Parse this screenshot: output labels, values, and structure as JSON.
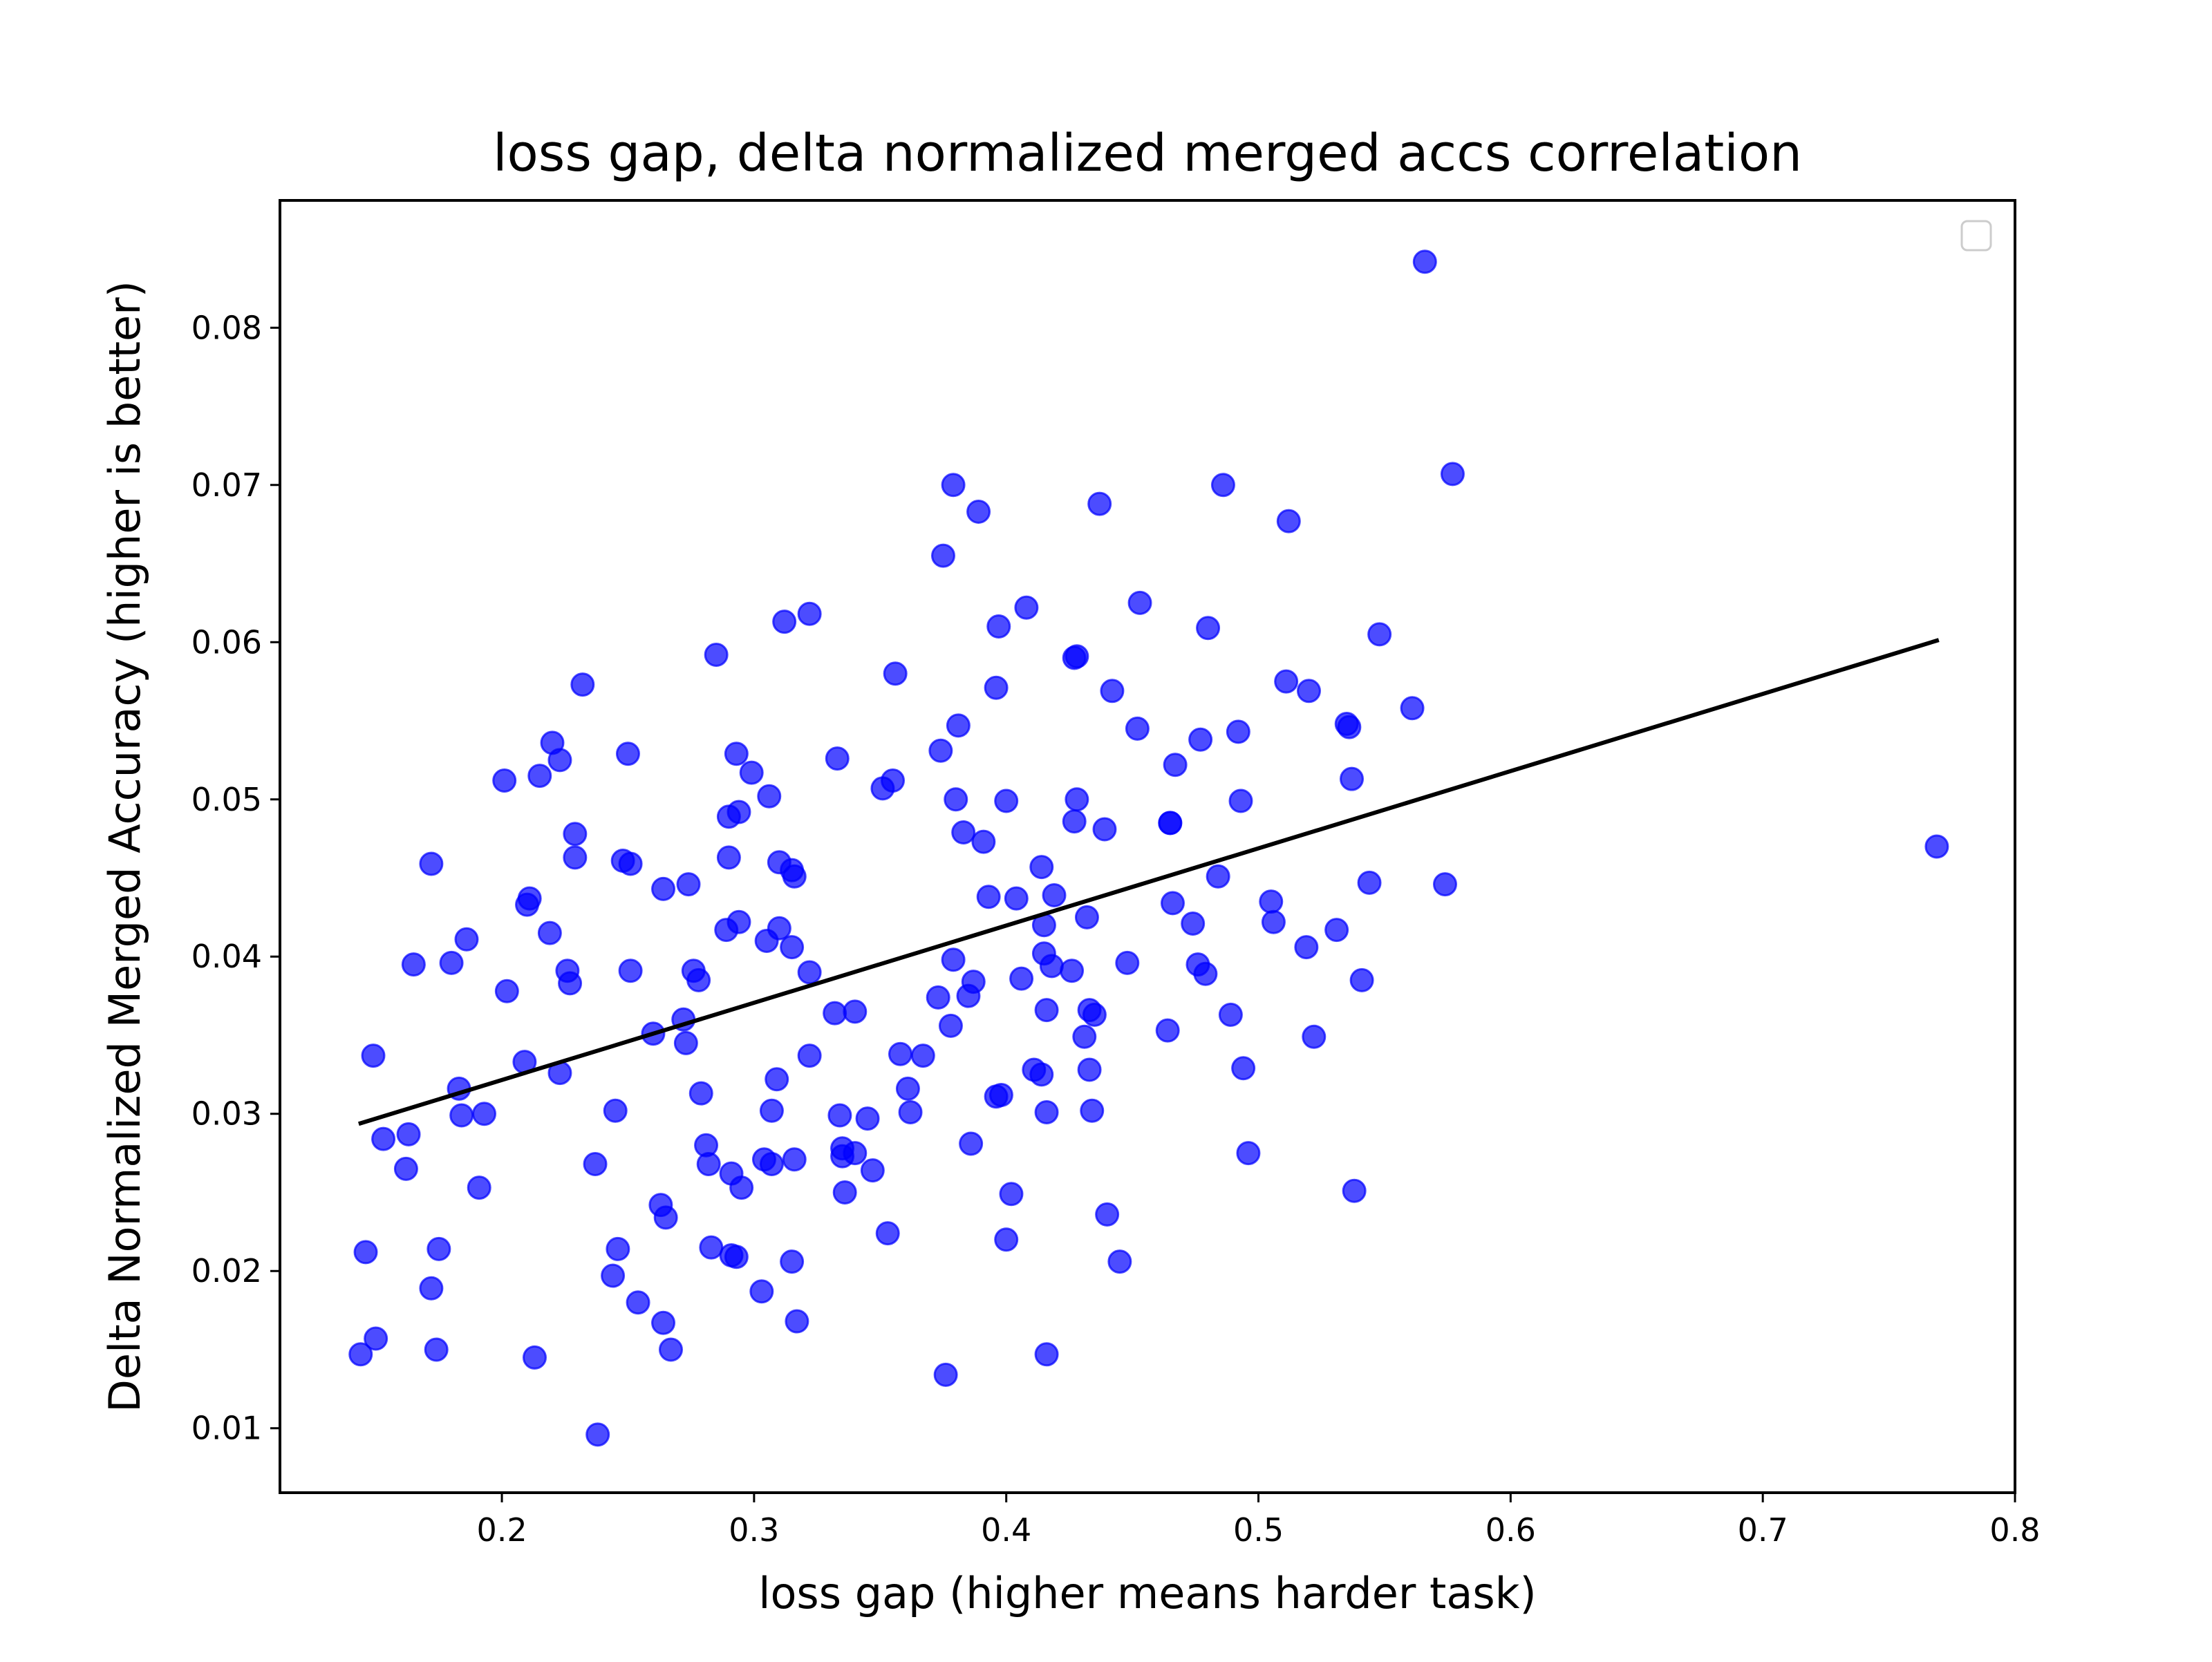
{
  "chart_data": {
    "type": "scatter",
    "title": "loss gap, delta normalized merged accs correlation",
    "xlabel": "loss gap (higher means harder task)",
    "ylabel": "Delta Normalized Merged Accuracy (higher is better)",
    "xlim": [
      0.112,
      0.8
    ],
    "ylim": [
      0.0059,
      0.0881
    ],
    "x_ticks": [
      0.2,
      0.3,
      0.4,
      0.5,
      0.6,
      0.7,
      0.8
    ],
    "x_tick_labels": [
      "0.2",
      "0.3",
      "0.4",
      "0.5",
      "0.6",
      "0.7",
      "0.8"
    ],
    "y_ticks": [
      0.01,
      0.02,
      0.03,
      0.04,
      0.05,
      0.06,
      0.07,
      0.08
    ],
    "y_tick_labels": [
      "0.01",
      "0.02",
      "0.03",
      "0.04",
      "0.05",
      "0.06",
      "0.07",
      "0.08"
    ],
    "grid": false,
    "legend": {
      "placement": "upper right",
      "entries": []
    },
    "colors": {
      "points": "#0000ff",
      "point_alpha": 0.7,
      "trend_line": "#000000"
    },
    "trend_line": {
      "x": [
        0.144,
        0.769
      ],
      "y": [
        0.0294,
        0.0601
      ]
    },
    "points": [
      [
        0.144,
        0.0147
      ],
      [
        0.146,
        0.0212
      ],
      [
        0.149,
        0.0337
      ],
      [
        0.15,
        0.0157
      ],
      [
        0.153,
        0.0284
      ],
      [
        0.162,
        0.0265
      ],
      [
        0.163,
        0.0287
      ],
      [
        0.165,
        0.0395
      ],
      [
        0.172,
        0.0459
      ],
      [
        0.172,
        0.0189
      ],
      [
        0.174,
        0.015
      ],
      [
        0.175,
        0.0214
      ],
      [
        0.18,
        0.0396
      ],
      [
        0.183,
        0.0316
      ],
      [
        0.184,
        0.0299
      ],
      [
        0.186,
        0.0411
      ],
      [
        0.191,
        0.0253
      ],
      [
        0.193,
        0.03
      ],
      [
        0.201,
        0.0512
      ],
      [
        0.202,
        0.0378
      ],
      [
        0.209,
        0.0333
      ],
      [
        0.21,
        0.0433
      ],
      [
        0.211,
        0.0437
      ],
      [
        0.213,
        0.0145
      ],
      [
        0.215,
        0.0515
      ],
      [
        0.219,
        0.0415
      ],
      [
        0.22,
        0.0536
      ],
      [
        0.223,
        0.0525
      ],
      [
        0.223,
        0.0326
      ],
      [
        0.226,
        0.0391
      ],
      [
        0.227,
        0.0383
      ],
      [
        0.229,
        0.0478
      ],
      [
        0.229,
        0.0463
      ],
      [
        0.232,
        0.0573
      ],
      [
        0.237,
        0.0268
      ],
      [
        0.238,
        0.0096
      ],
      [
        0.244,
        0.0197
      ],
      [
        0.245,
        0.0302
      ],
      [
        0.246,
        0.0214
      ],
      [
        0.248,
        0.0461
      ],
      [
        0.25,
        0.0529
      ],
      [
        0.251,
        0.0391
      ],
      [
        0.251,
        0.0459
      ],
      [
        0.254,
        0.018
      ],
      [
        0.26,
        0.0351
      ],
      [
        0.263,
        0.0242
      ],
      [
        0.264,
        0.0443
      ],
      [
        0.264,
        0.0167
      ],
      [
        0.265,
        0.0234
      ],
      [
        0.267,
        0.015
      ],
      [
        0.272,
        0.036
      ],
      [
        0.273,
        0.0345
      ],
      [
        0.274,
        0.0446
      ],
      [
        0.276,
        0.0391
      ],
      [
        0.278,
        0.0385
      ],
      [
        0.279,
        0.0313
      ],
      [
        0.281,
        0.028
      ],
      [
        0.282,
        0.0268
      ],
      [
        0.283,
        0.0215
      ],
      [
        0.285,
        0.0592
      ],
      [
        0.289,
        0.0417
      ],
      [
        0.29,
        0.0463
      ],
      [
        0.29,
        0.0489
      ],
      [
        0.291,
        0.0262
      ],
      [
        0.291,
        0.021
      ],
      [
        0.293,
        0.0529
      ],
      [
        0.293,
        0.0209
      ],
      [
        0.294,
        0.0492
      ],
      [
        0.294,
        0.0422
      ],
      [
        0.295,
        0.0253
      ],
      [
        0.299,
        0.0517
      ],
      [
        0.303,
        0.0187
      ],
      [
        0.304,
        0.0271
      ],
      [
        0.305,
        0.041
      ],
      [
        0.306,
        0.0502
      ],
      [
        0.307,
        0.0268
      ],
      [
        0.307,
        0.0302
      ],
      [
        0.309,
        0.0322
      ],
      [
        0.31,
        0.0418
      ],
      [
        0.31,
        0.046
      ],
      [
        0.312,
        0.0613
      ],
      [
        0.315,
        0.0455
      ],
      [
        0.315,
        0.0406
      ],
      [
        0.315,
        0.0206
      ],
      [
        0.316,
        0.0271
      ],
      [
        0.316,
        0.0451
      ],
      [
        0.317,
        0.0168
      ],
      [
        0.322,
        0.0618
      ],
      [
        0.322,
        0.039
      ],
      [
        0.322,
        0.0337
      ],
      [
        0.332,
        0.0364
      ],
      [
        0.333,
        0.0526
      ],
      [
        0.334,
        0.0299
      ],
      [
        0.335,
        0.0273
      ],
      [
        0.335,
        0.0278
      ],
      [
        0.336,
        0.025
      ],
      [
        0.34,
        0.0365
      ],
      [
        0.34,
        0.0275
      ],
      [
        0.345,
        0.0297
      ],
      [
        0.347,
        0.0264
      ],
      [
        0.351,
        0.0507
      ],
      [
        0.353,
        0.0224
      ],
      [
        0.355,
        0.0512
      ],
      [
        0.356,
        0.058
      ],
      [
        0.358,
        0.0338
      ],
      [
        0.361,
        0.0316
      ],
      [
        0.362,
        0.0301
      ],
      [
        0.367,
        0.0337
      ],
      [
        0.373,
        0.0374
      ],
      [
        0.374,
        0.0531
      ],
      [
        0.375,
        0.0655
      ],
      [
        0.376,
        0.0134
      ],
      [
        0.378,
        0.0356
      ],
      [
        0.379,
        0.07
      ],
      [
        0.379,
        0.0398
      ],
      [
        0.38,
        0.05
      ],
      [
        0.381,
        0.0547
      ],
      [
        0.383,
        0.0479
      ],
      [
        0.385,
        0.0375
      ],
      [
        0.386,
        0.0281
      ],
      [
        0.387,
        0.0384
      ],
      [
        0.389,
        0.0683
      ],
      [
        0.391,
        0.0473
      ],
      [
        0.393,
        0.0438
      ],
      [
        0.396,
        0.0311
      ],
      [
        0.396,
        0.0571
      ],
      [
        0.397,
        0.061
      ],
      [
        0.398,
        0.0312
      ],
      [
        0.4,
        0.0499
      ],
      [
        0.4,
        0.022
      ],
      [
        0.402,
        0.0249
      ],
      [
        0.404,
        0.0437
      ],
      [
        0.406,
        0.0386
      ],
      [
        0.408,
        0.0622
      ],
      [
        0.411,
        0.0328
      ],
      [
        0.414,
        0.0457
      ],
      [
        0.414,
        0.0325
      ],
      [
        0.415,
        0.0402
      ],
      [
        0.415,
        0.042
      ],
      [
        0.416,
        0.0366
      ],
      [
        0.416,
        0.0301
      ],
      [
        0.416,
        0.0147
      ],
      [
        0.418,
        0.0394
      ],
      [
        0.419,
        0.0439
      ],
      [
        0.426,
        0.0391
      ],
      [
        0.427,
        0.0486
      ],
      [
        0.427,
        0.059
      ],
      [
        0.428,
        0.0591
      ],
      [
        0.428,
        0.05
      ],
      [
        0.431,
        0.0349
      ],
      [
        0.432,
        0.0425
      ],
      [
        0.433,
        0.0328
      ],
      [
        0.433,
        0.0366
      ],
      [
        0.434,
        0.0302
      ],
      [
        0.435,
        0.0363
      ],
      [
        0.437,
        0.0688
      ],
      [
        0.439,
        0.0481
      ],
      [
        0.44,
        0.0236
      ],
      [
        0.442,
        0.0569
      ],
      [
        0.445,
        0.0206
      ],
      [
        0.448,
        0.0396
      ],
      [
        0.452,
        0.0545
      ],
      [
        0.453,
        0.0625
      ],
      [
        0.464,
        0.0353
      ],
      [
        0.465,
        0.0485
      ],
      [
        0.465,
        0.0485
      ],
      [
        0.466,
        0.0434
      ],
      [
        0.467,
        0.0522
      ],
      [
        0.474,
        0.0421
      ],
      [
        0.476,
        0.0395
      ],
      [
        0.477,
        0.0538
      ],
      [
        0.479,
        0.0389
      ],
      [
        0.48,
        0.0609
      ],
      [
        0.484,
        0.0451
      ],
      [
        0.486,
        0.07
      ],
      [
        0.489,
        0.0363
      ],
      [
        0.492,
        0.0543
      ],
      [
        0.493,
        0.0499
      ],
      [
        0.494,
        0.0329
      ],
      [
        0.496,
        0.0275
      ],
      [
        0.505,
        0.0435
      ],
      [
        0.506,
        0.0422
      ],
      [
        0.511,
        0.0575
      ],
      [
        0.512,
        0.0677
      ],
      [
        0.519,
        0.0406
      ],
      [
        0.52,
        0.0569
      ],
      [
        0.522,
        0.0349
      ],
      [
        0.531,
        0.0417
      ],
      [
        0.535,
        0.0548
      ],
      [
        0.536,
        0.0546
      ],
      [
        0.537,
        0.0513
      ],
      [
        0.538,
        0.0251
      ],
      [
        0.541,
        0.0385
      ],
      [
        0.544,
        0.0447
      ],
      [
        0.548,
        0.0605
      ],
      [
        0.561,
        0.0558
      ],
      [
        0.566,
        0.0842
      ],
      [
        0.574,
        0.0446
      ],
      [
        0.577,
        0.0707
      ],
      [
        0.769,
        0.047
      ]
    ]
  }
}
